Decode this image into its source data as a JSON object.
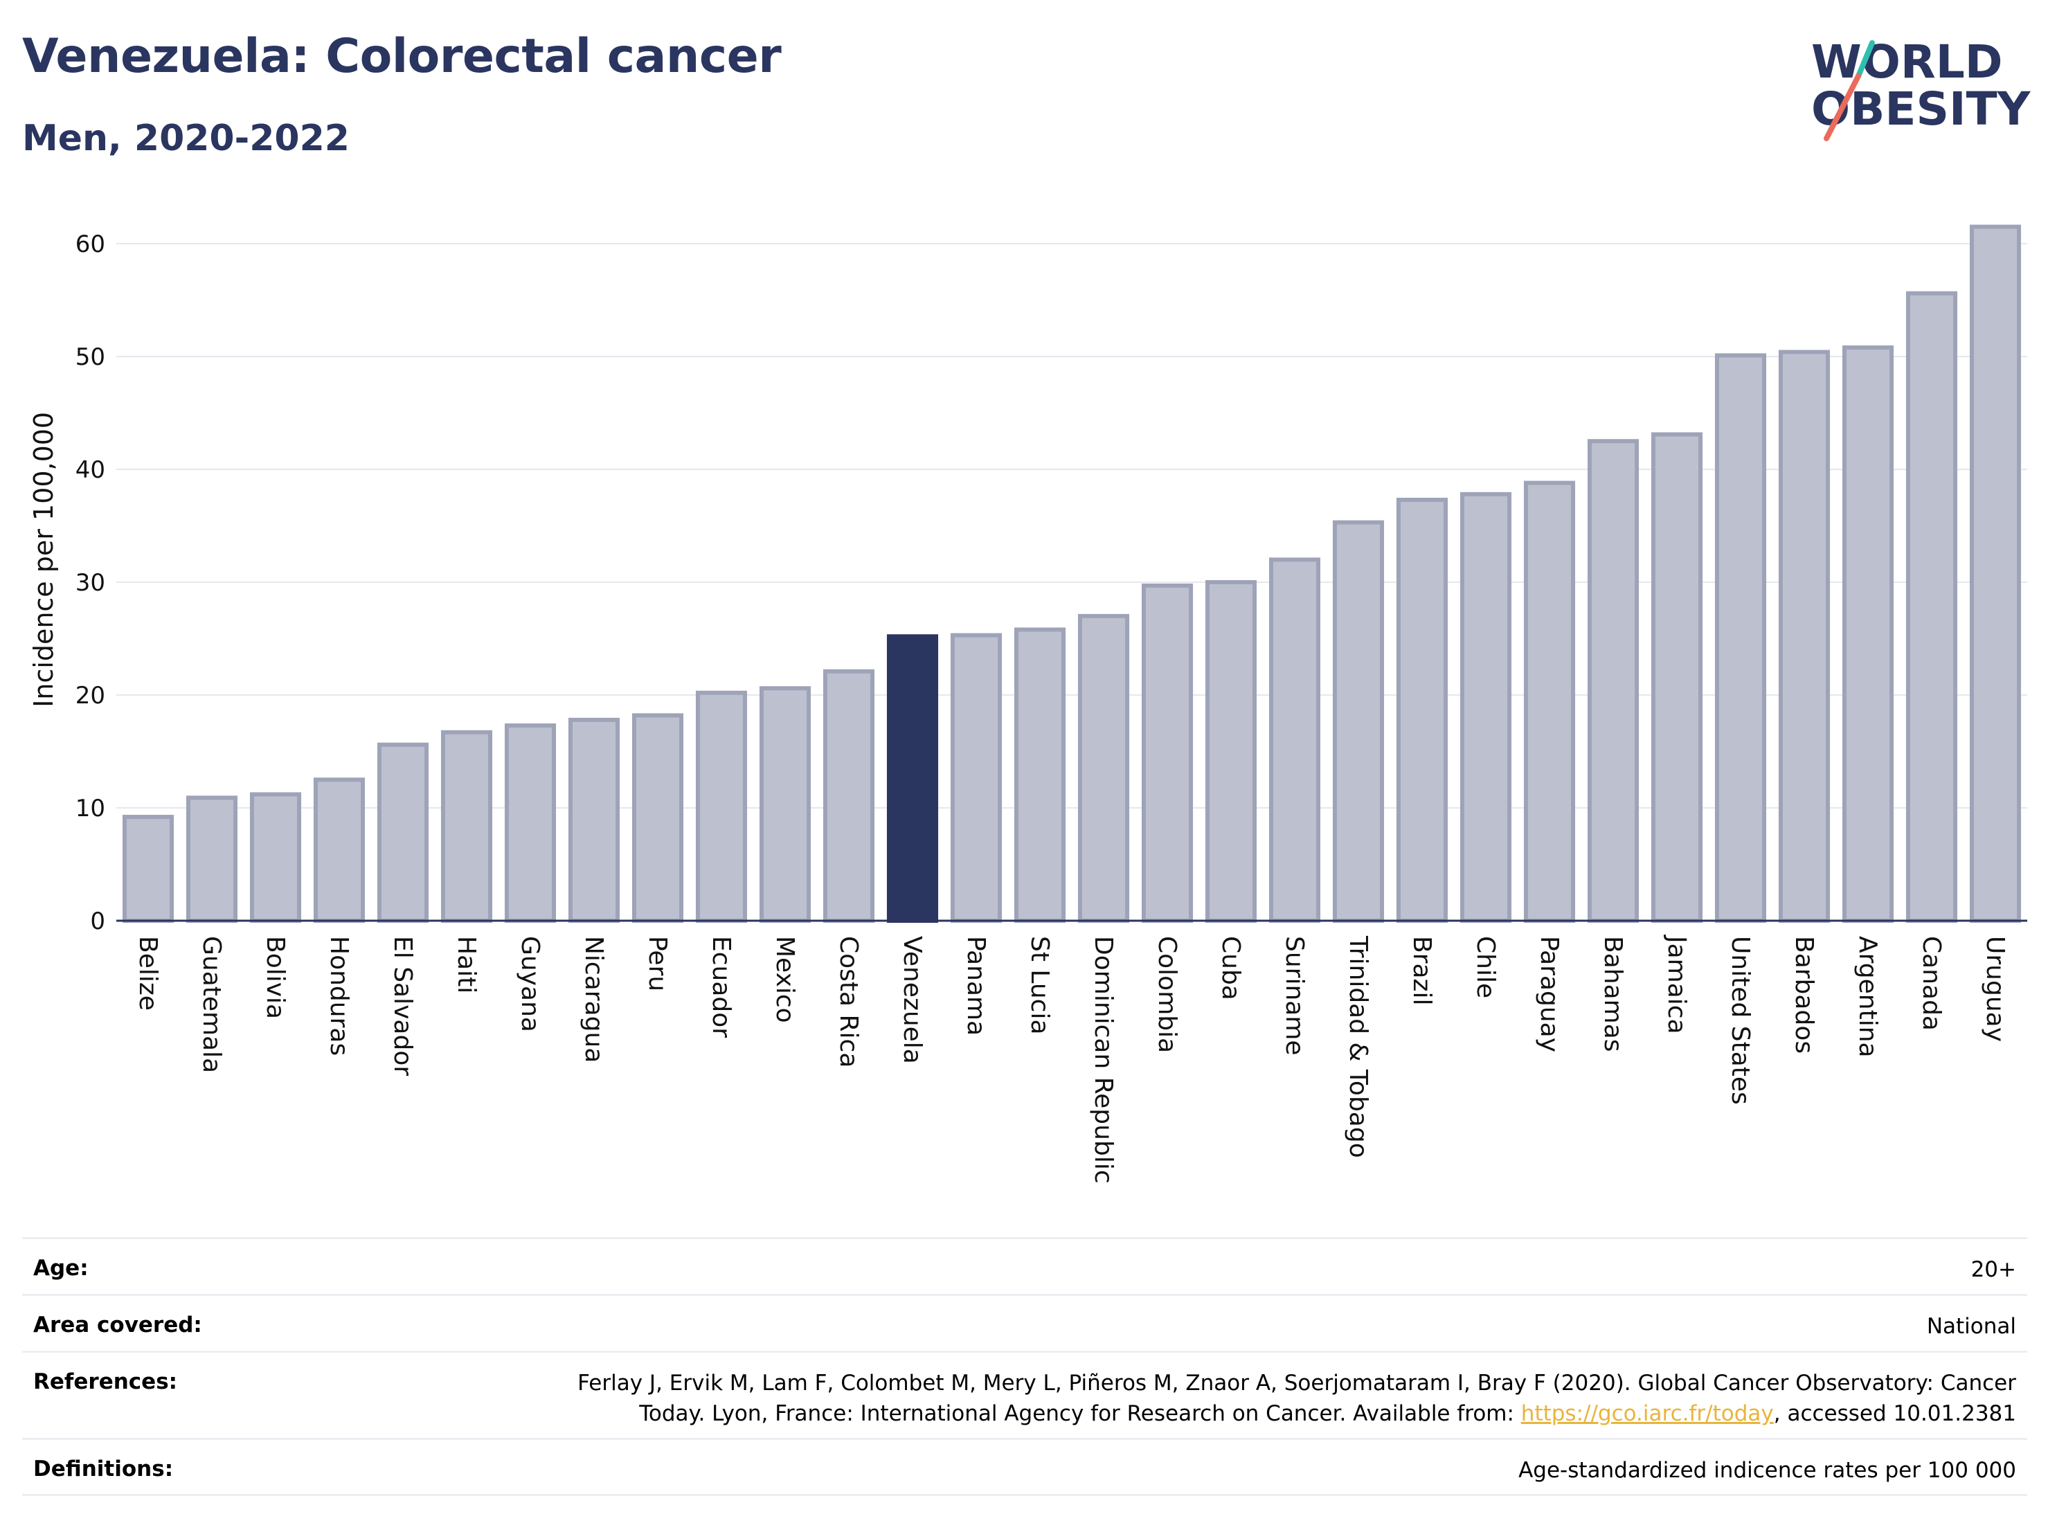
{
  "header": {
    "title": "Venezuela: Colorectal cancer",
    "subtitle": "Men, 2020-2022"
  },
  "logo": {
    "line1": "WORLD",
    "line2": "OBESITY",
    "colors": {
      "text": "#2a3560",
      "slash_top": "#2fbfb0",
      "slash_bottom": "#ec6a5c"
    }
  },
  "chart_data": {
    "type": "bar",
    "title": "",
    "xlabel": "",
    "ylabel": "Incidence per 100,000",
    "ylim": [
      0,
      65
    ],
    "yticks": [
      0,
      10,
      20,
      30,
      40,
      50,
      60
    ],
    "grid": true,
    "highlight": "Venezuela",
    "colors": {
      "bar": "#bdc1cf",
      "bar_edge": "#9ea3b8",
      "highlight": "#2a3560",
      "grid": "#e6e8ee",
      "axis": "#2a3560"
    },
    "categories": [
      "Belize",
      "Guatemala",
      "Bolivia",
      "Honduras",
      "El Salvador",
      "Haiti",
      "Guyana",
      "Nicaragua",
      "Peru",
      "Ecuador",
      "Mexico",
      "Costa Rica",
      "Venezuela",
      "Panama",
      "St Lucia",
      "Dominican Republic",
      "Colombia",
      "Cuba",
      "Suriname",
      "Trinidad & Tobago",
      "Brazil",
      "Chile",
      "Paraguay",
      "Bahamas",
      "Jamaica",
      "United States",
      "Barbados",
      "Argentina",
      "Canada",
      "Uruguay"
    ],
    "values": [
      9.2,
      10.9,
      11.2,
      12.5,
      15.6,
      16.7,
      17.3,
      17.8,
      18.2,
      20.2,
      20.6,
      22.1,
      25.2,
      25.3,
      25.8,
      27.0,
      29.7,
      30.0,
      32.0,
      35.3,
      37.3,
      37.8,
      38.8,
      42.5,
      43.1,
      50.1,
      50.4,
      50.8,
      55.6,
      61.5
    ]
  },
  "info": {
    "age": {
      "label": "Age:",
      "value": "20+"
    },
    "area": {
      "label": "Area covered:",
      "value": "National"
    },
    "references": {
      "label": "References:",
      "line1": "Ferlay J, Ervik M, Lam F, Colombet M, Mery L, Piñeros M, Znaor A, Soerjomataram I, Bray F (2020). Global Cancer Observatory: Cancer",
      "line2_prefix": "Today. Lyon, France: International Agency for Research on Cancer. Available from: ",
      "link": "https://gco.iarc.fr/today",
      "line2_suffix": ", accessed 10.01.2381"
    },
    "definitions": {
      "label": "Definitions:",
      "value": "Age-standardized indicence rates per 100 000"
    }
  }
}
